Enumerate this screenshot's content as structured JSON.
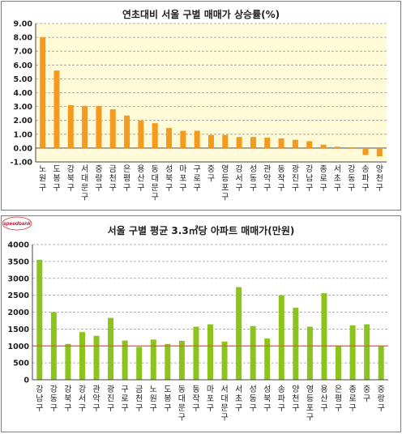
{
  "charts": {
    "top": {
      "title": "연초대비 서울 구별 매매가 상승률(%)"
    },
    "bottom": {
      "title": "서울 구별 평균 3.3㎡당 아파트 매매가(만원)",
      "logo": {
        "text": "speedbank"
      }
    }
  },
  "chart_data": [
    {
      "type": "bar",
      "title": "연초대비 서울 구별 매매가 상승률(%)",
      "categories": [
        "노원구",
        "도봉구",
        "강북구",
        "서대문구",
        "중랑구",
        "금천구",
        "은평구",
        "용산구",
        "동대문구",
        "성북구",
        "마포구",
        "구로구",
        "중구",
        "영등포구",
        "강서구",
        "성동구",
        "관악구",
        "동작구",
        "광진구",
        "강남구",
        "종로구",
        "서초구",
        "강동구",
        "송파구",
        "양천구"
      ],
      "values": [
        8.0,
        5.6,
        3.1,
        3.05,
        3.05,
        2.8,
        2.35,
        2.0,
        1.8,
        1.45,
        1.25,
        1.25,
        0.95,
        0.95,
        0.8,
        0.8,
        0.75,
        0.7,
        0.6,
        0.5,
        0.25,
        0.1,
        0.05,
        -0.5,
        -0.6
      ],
      "ylim": [
        -1.0,
        9.0
      ],
      "yticks": [
        "-1.00",
        "0.00",
        "1.00",
        "2.00",
        "3.00",
        "4.00",
        "5.00",
        "6.00",
        "7.00",
        "8.00",
        "9.00"
      ],
      "bar_color": "#f39a1f",
      "plot_bg": "#fffbd9",
      "grid": true
    },
    {
      "type": "bar",
      "title": "서울 구별 평균 3.3㎡당 아파트 매매가(만원)",
      "categories": [
        "강남구",
        "강동구",
        "강북구",
        "강서구",
        "관악구",
        "광진구",
        "구로구",
        "금천구",
        "노원구",
        "도봉구",
        "동대문구",
        "동작구",
        "마포구",
        "서대문구",
        "서초구",
        "성동구",
        "성북구",
        "송파구",
        "양천구",
        "영등포구",
        "용산구",
        "은평구",
        "종로구",
        "중구",
        "중랑구"
      ],
      "values": [
        3550,
        2000,
        1060,
        1410,
        1300,
        1830,
        1160,
        970,
        1190,
        1060,
        1150,
        1570,
        1640,
        1130,
        2740,
        1590,
        1220,
        2500,
        2130,
        1570,
        2560,
        1010,
        1610,
        1640,
        1000
      ],
      "ylim": [
        0,
        4000
      ],
      "yticks": [
        "0",
        "500",
        "1000",
        "1500",
        "2000",
        "2500",
        "3000",
        "3500",
        "4000"
      ],
      "reference_line": 1000,
      "bar_color": "#8cc31c",
      "reference_color": "#e05a3a",
      "grid": true
    }
  ]
}
